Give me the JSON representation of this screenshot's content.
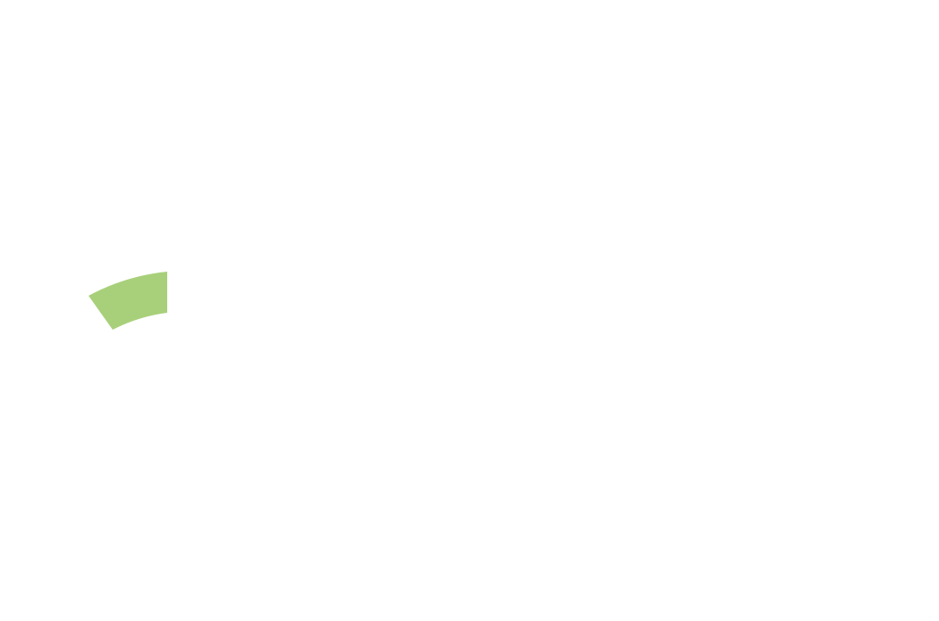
{
  "canvas": {
    "background_color": "#ffffff"
  },
  "shapes": [
    {
      "kind": "arc-segment",
      "icon": "green-arc-segment",
      "fill_color": "#a8d07a"
    }
  ]
}
